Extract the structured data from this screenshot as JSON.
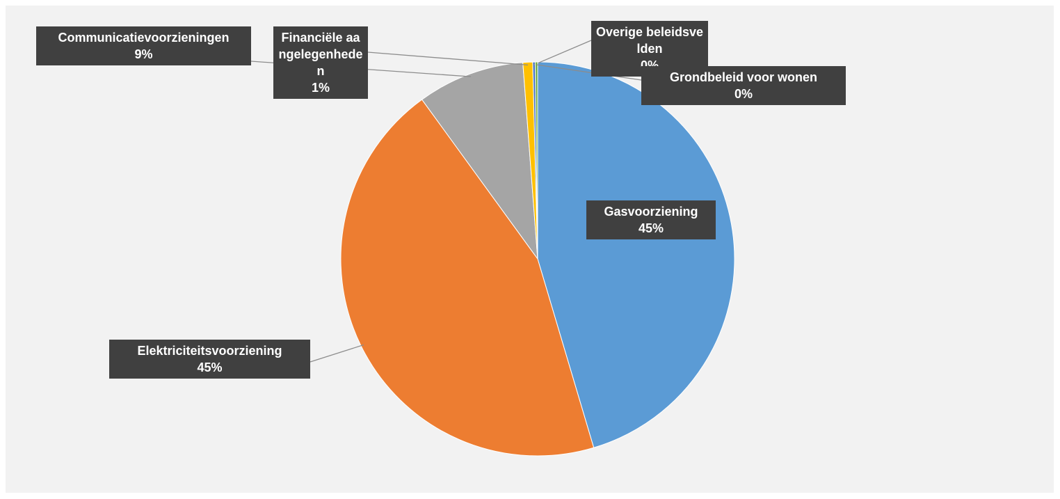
{
  "chart_data": {
    "type": "pie",
    "categories": [
      "Gasvoorziening",
      "Elektriciteitsvoorziening",
      "Communicatievoorzieningen",
      "Financiële aangelegenheden",
      "Overige beleidsvelden",
      "Grondbeleid voor wonen"
    ],
    "values": [
      45.4,
      44.6,
      8.8,
      0.8,
      0.2,
      0.2
    ],
    "value_labels": [
      "45%",
      "45%",
      "9%",
      "1%",
      "0%",
      "0%"
    ],
    "colors": [
      "#5b9bd5",
      "#ed7d31",
      "#a5a5a5",
      "#ffc000",
      "#4472c4",
      "#70ad47"
    ]
  }
}
